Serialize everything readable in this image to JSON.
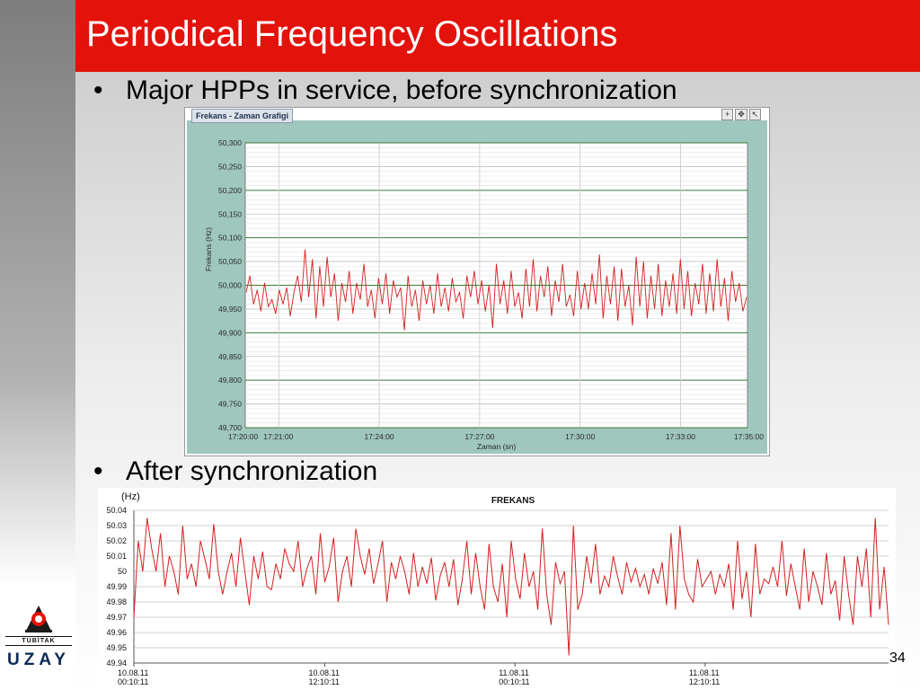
{
  "slide": {
    "title": "Periodical Frequency Oscillations",
    "bullet1": "Major HPPs in service, before synchronization",
    "bullet2": "After synchronization",
    "page_number": "34",
    "logo_small": "TÜBİTAK",
    "logo_big": "UZAY",
    "colors": {
      "title_bar": "#e3120b",
      "line": "#d42020",
      "chart1_frame": "#9fc7bd"
    }
  },
  "chart_data": [
    {
      "type": "line",
      "window_title": "Frekans - Zaman Grafigi",
      "xlabel": "Zaman (sn)",
      "ylabel": "Frekans (Hz)",
      "ylim": [
        49.7,
        50.3
      ],
      "yticks": [
        "50,300",
        "50,250",
        "50,200",
        "50,150",
        "50,100",
        "50,050",
        "50,000",
        "49,950",
        "49,900",
        "49,850",
        "49,800",
        "49,750",
        "49,700"
      ],
      "xticks": [
        "17:20:00",
        "17:21:00",
        "17:24:00",
        "17:27:00",
        "17:30:00",
        "17:33:00",
        "17:35:00"
      ],
      "series": [
        {
          "values": [
            49.985,
            50.02,
            49.96,
            49.99,
            49.945,
            50.005,
            49.955,
            49.97,
            49.94,
            49.99,
            49.96,
            49.995,
            49.935,
            49.985,
            50.02,
            49.965,
            50.075,
            49.975,
            50.055,
            49.93,
            50.04,
            49.955,
            50.06,
            49.975,
            50.025,
            49.925,
            50.005,
            49.965,
            50.03,
            49.94,
            50.005,
            49.97,
            50.045,
            49.955,
            49.99,
            49.93,
            50.015,
            49.96,
            50.025,
            49.94,
            50.01,
            49.975,
            49.995,
            49.905,
            50.02,
            49.955,
            49.99,
            49.925,
            50.01,
            49.96,
            50.0,
            49.94,
            50.025,
            49.955,
            49.995,
            49.945,
            50.015,
            49.965,
            49.985,
            49.93,
            50.02,
            49.975,
            50.03,
            49.96,
            50.01,
            49.945,
            50.0,
            49.91,
            50.045,
            49.96,
            50.01,
            49.94,
            50.03,
            49.955,
            49.985,
            49.93,
            50.035,
            49.955,
            50.055,
            49.945,
            50.02,
            49.975,
            50.04,
            49.935,
            50.01,
            49.965,
            50.045,
            49.955,
            49.98,
            49.935,
            50.03,
            49.95,
            50.005,
            49.95,
            50.025,
            49.96,
            50.065,
            49.93,
            50.02,
            49.96,
            50.04,
            49.925,
            50.035,
            49.955,
            50.0,
            49.915,
            50.06,
            49.955,
            50.05,
            49.93,
            50.02,
            49.95,
            50.045,
            49.935,
            50.01,
            49.955,
            50.025,
            49.94,
            50.055,
            49.95,
            50.03,
            49.935,
            50.005,
            49.96,
            50.045,
            49.94,
            50.025,
            49.945,
            50.055,
            49.955,
            50.015,
            49.925,
            50.03,
            49.965,
            50.005,
            49.945,
            49.975
          ]
        }
      ]
    },
    {
      "type": "line",
      "title": "FREKANS",
      "ylabel": "(Hz)",
      "ylim": [
        49.94,
        50.04
      ],
      "yticks": [
        "50.04",
        "50.03",
        "50.02",
        "50.01",
        "50",
        "49.99",
        "49.98",
        "49.97",
        "49.96",
        "49.95",
        "49.94"
      ],
      "xticks": [
        {
          "date": "10.08.11",
          "time": "00:10:11"
        },
        {
          "date": "10.08.11",
          "time": "12:10:11"
        },
        {
          "date": "11.08.11",
          "time": "00:10:11"
        },
        {
          "date": "11.08.11",
          "time": "12:10:11"
        }
      ],
      "series": [
        {
          "values": [
            49.97,
            50.02,
            50.0,
            50.035,
            50.015,
            50.0,
            50.025,
            49.99,
            50.01,
            50.0,
            49.985,
            50.03,
            49.995,
            50.005,
            49.99,
            50.02,
            50.008,
            49.995,
            50.031,
            50.0,
            49.985,
            50.0,
            50.012,
            49.99,
            50.022,
            50.0,
            49.978,
            50.01,
            49.995,
            50.013,
            49.99,
            49.988,
            50.005,
            49.995,
            50.015,
            50.005,
            50.0,
            50.02,
            49.99,
            50.002,
            50.01,
            49.985,
            50.025,
            49.993,
            50.003,
            50.022,
            49.98,
            50.0,
            50.01,
            49.99,
            50.028,
            50.01,
            49.998,
            50.015,
            49.992,
            50.005,
            50.02,
            49.98,
            50.006,
            49.995,
            50.01,
            50.0,
            49.985,
            50.012,
            49.99,
            50.003,
            49.992,
            50.009,
            49.981,
            49.997,
            50.006,
            49.99,
            50.008,
            49.978,
            49.995,
            50.02,
            49.985,
            50.012,
            49.99,
            49.975,
            50.018,
            49.99,
            49.98,
            50.005,
            49.97,
            50.02,
            49.995,
            49.982,
            50.012,
            49.99,
            50.0,
            49.975,
            50.028,
            49.985,
            49.965,
            50.006,
            49.992,
            50.0,
            49.945,
            50.03,
            49.975,
            49.985,
            50.01,
            49.992,
            50.018,
            49.985,
            49.997,
            49.99,
            50.01,
            49.996,
            49.985,
            50.006,
            49.993,
            50.002,
            49.99,
            49.998,
            49.985,
            50.002,
            49.992,
            50.006,
            49.978,
            50.025,
            49.975,
            50.03,
            49.995,
            49.985,
            49.98,
            50.008,
            49.99,
            49.995,
            50.0,
            49.985,
            49.998,
            49.99,
            50.005,
            49.975,
            50.02,
            49.982,
            50.0,
            49.97,
            50.018,
            49.985,
            49.995,
            49.992,
            50.003,
            49.99,
            50.02,
            49.984,
            50.005,
            49.99,
            49.975,
            50.015,
            49.98,
            50.0,
            49.99,
            49.978,
            50.012,
            49.985,
            49.994,
            49.968,
            50.01,
            49.985,
            49.965,
            50.01,
            49.99,
            50.015,
            49.97,
            50.035,
            49.975,
            50.003,
            49.965
          ]
        }
      ]
    }
  ]
}
